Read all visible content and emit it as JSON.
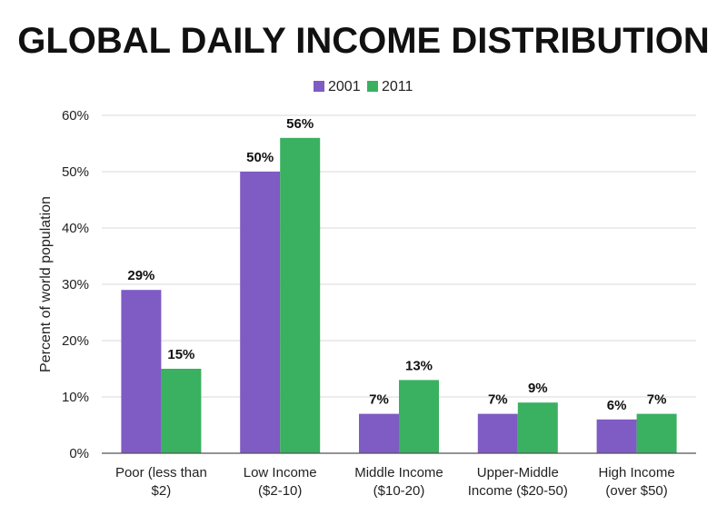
{
  "chart_data": {
    "type": "bar",
    "title": "GLOBAL DAILY INCOME DISTRIBUTION",
    "ylabel": "Percent of world population",
    "xlabel": "",
    "ylim": [
      0,
      60
    ],
    "yticks": [
      0,
      10,
      20,
      30,
      40,
      50,
      60
    ],
    "ytick_suffix": "%",
    "grid": true,
    "legend_position": "top-center",
    "categories": [
      [
        "Poor (less than",
        "$2)"
      ],
      [
        "Low Income",
        "($2-10)"
      ],
      [
        "Middle Income",
        "($10-20)"
      ],
      [
        "Upper-Middle",
        "Income ($20-50)"
      ],
      [
        "High Income",
        "(over $50)"
      ]
    ],
    "series": [
      {
        "name": "2001",
        "color": "#7f5bc4",
        "values": [
          29,
          50,
          7,
          7,
          6
        ],
        "labels": [
          "29%",
          "50%",
          "7%",
          "7%",
          "6%"
        ]
      },
      {
        "name": "2011",
        "color": "#3ab061",
        "values": [
          15,
          56,
          13,
          9,
          7
        ],
        "labels": [
          "15%",
          "56%",
          "13%",
          "9%",
          "7%"
        ]
      }
    ]
  }
}
